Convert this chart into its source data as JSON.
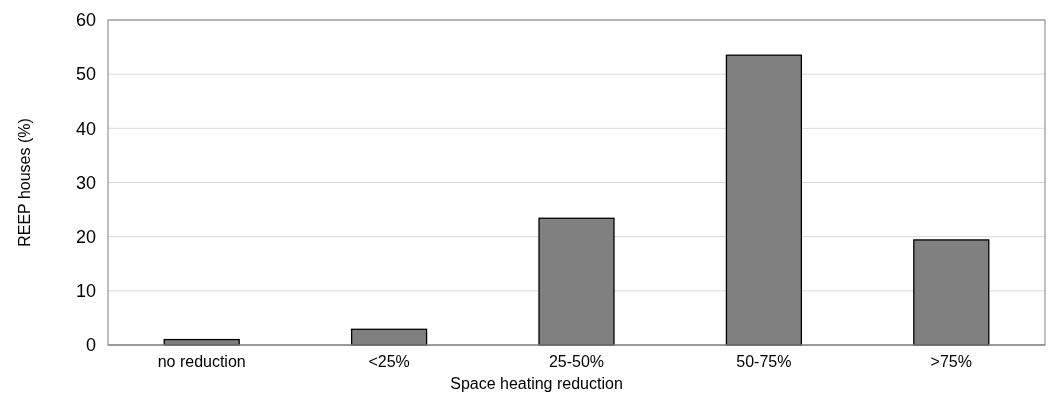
{
  "chart_data": {
    "type": "bar",
    "xlabel": "Space heating reduction",
    "ylabel": "REEP houses (%)",
    "categories": [
      "no reduction",
      "<25%",
      "25-50%",
      "50-75%",
      ">75%"
    ],
    "values": [
      1.0,
      2.9,
      23.4,
      53.5,
      19.4
    ],
    "color": "#808080",
    "ylim": [
      0,
      60
    ],
    "yticks": [
      0,
      10,
      20,
      30,
      40,
      50,
      60
    ],
    "grid": "y"
  }
}
